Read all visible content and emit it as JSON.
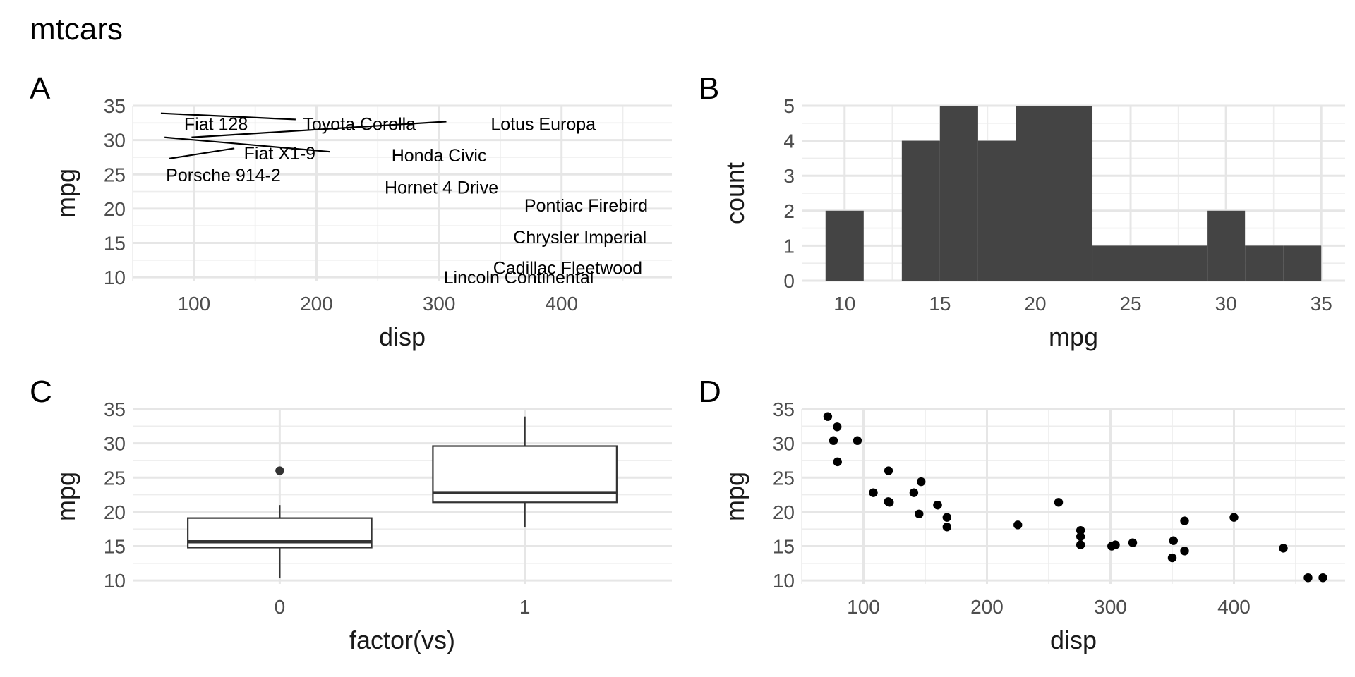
{
  "title": "mtcars",
  "chart_data": [
    {
      "tag": "A",
      "type": "scatter",
      "subtype": "text-labels",
      "xlabel": "disp",
      "ylabel": "mpg",
      "xlim": [
        50,
        490
      ],
      "ylim": [
        9.5,
        35
      ],
      "xticks": [
        100,
        200,
        300,
        400
      ],
      "yticks": [
        10,
        15,
        20,
        25,
        30,
        35
      ],
      "points": [
        {
          "label": "Fiat 128",
          "x": 78.7,
          "y": 32.4,
          "lx": 118,
          "ly": 32.4
        },
        {
          "label": "Toyota Corolla",
          "x": 71.1,
          "y": 33.9,
          "lx": 235,
          "ly": 32.4
        },
        {
          "label": "Lotus Europa",
          "x": 95.1,
          "y": 30.4,
          "lx": 385,
          "ly": 32.4
        },
        {
          "label": "Honda Civic",
          "x": 75.7,
          "y": 30.4,
          "lx": 300,
          "ly": 27.8
        },
        {
          "label": "Fiat X1-9",
          "x": 79.0,
          "y": 27.3,
          "lx": 170,
          "ly": 28.1
        },
        {
          "label": "Porsche 914-2",
          "x": 120.3,
          "y": 26.0,
          "lx": 124,
          "ly": 24.9
        },
        {
          "label": "Hornet 4 Drive",
          "x": 258.0,
          "y": 21.4,
          "lx": 302,
          "ly": 23.1
        },
        {
          "label": "Pontiac Firebird",
          "x": 400.0,
          "y": 19.2,
          "lx": 420,
          "ly": 20.5
        },
        {
          "label": "Chrysler Imperial",
          "x": 440.0,
          "y": 14.7,
          "lx": 415,
          "ly": 15.9
        },
        {
          "label": "Cadillac Fleetwood",
          "x": 472.0,
          "y": 10.4,
          "lx": 405,
          "ly": 11.4
        },
        {
          "label": "Lincoln Continental",
          "x": 460.0,
          "y": 10.4,
          "lx": 365,
          "ly": 10.0
        }
      ],
      "connectors": [
        {
          "from": [
            73,
            33.9
          ],
          "to": [
            183,
            33.0
          ]
        },
        {
          "from": [
            98,
            30.4
          ],
          "to": [
            306,
            32.7
          ]
        },
        {
          "from": [
            76,
            30.4
          ],
          "to": [
            211,
            28.3
          ]
        },
        {
          "from": [
            80,
            27.3
          ],
          "to": [
            133,
            28.8
          ]
        }
      ]
    },
    {
      "tag": "B",
      "type": "bar",
      "subtype": "histogram",
      "xlabel": "mpg",
      "ylabel": "count",
      "xlim": [
        7.75,
        36.25
      ],
      "ylim": [
        0,
        5
      ],
      "xticks": [
        10,
        15,
        20,
        25,
        30,
        35
      ],
      "yticks": [
        0,
        1,
        2,
        3,
        4,
        5
      ],
      "bin_edges": [
        9,
        11,
        13,
        15,
        17,
        19,
        21,
        23,
        25,
        27,
        29,
        31,
        33,
        35
      ],
      "counts": [
        2,
        0,
        4,
        5,
        4,
        5,
        5,
        1,
        1,
        1,
        2,
        1,
        1
      ],
      "color": "#444444"
    },
    {
      "tag": "C",
      "type": "box",
      "xlabel": "factor(vs)",
      "ylabel": "mpg",
      "ylim": [
        9.5,
        35
      ],
      "yticks": [
        10,
        15,
        20,
        25,
        30,
        35
      ],
      "categories": [
        "0",
        "1"
      ],
      "boxes": [
        {
          "category": "0",
          "whisker_low": 10.4,
          "q1": 14.8,
          "median": 15.65,
          "q3": 19.1,
          "whisker_high": 21.0,
          "outliers": [
            26.0
          ]
        },
        {
          "category": "1",
          "whisker_low": 17.8,
          "q1": 21.4,
          "median": 22.8,
          "q3": 29.6,
          "whisker_high": 33.9,
          "outliers": []
        }
      ]
    },
    {
      "tag": "D",
      "type": "scatter",
      "xlabel": "disp",
      "ylabel": "mpg",
      "xlim": [
        50,
        490
      ],
      "ylim": [
        9.5,
        35
      ],
      "xticks": [
        100,
        200,
        300,
        400
      ],
      "yticks": [
        10,
        15,
        20,
        25,
        30,
        35
      ],
      "points": [
        [
          160,
          21.0
        ],
        [
          160,
          21.0
        ],
        [
          108,
          22.8
        ],
        [
          258,
          21.4
        ],
        [
          360,
          18.7
        ],
        [
          225,
          18.1
        ],
        [
          360,
          14.3
        ],
        [
          146.7,
          24.4
        ],
        [
          140.8,
          22.8
        ],
        [
          167.6,
          19.2
        ],
        [
          167.6,
          17.8
        ],
        [
          275.8,
          16.4
        ],
        [
          275.8,
          17.3
        ],
        [
          275.8,
          15.2
        ],
        [
          472,
          10.4
        ],
        [
          460,
          10.4
        ],
        [
          440,
          14.7
        ],
        [
          78.7,
          32.4
        ],
        [
          75.7,
          30.4
        ],
        [
          71.1,
          33.9
        ],
        [
          120.1,
          21.5
        ],
        [
          318,
          15.5
        ],
        [
          304,
          15.2
        ],
        [
          350,
          13.3
        ],
        [
          400,
          19.2
        ],
        [
          79,
          27.3
        ],
        [
          120.3,
          26.0
        ],
        [
          95.1,
          30.4
        ],
        [
          351,
          15.8
        ],
        [
          145,
          19.7
        ],
        [
          301,
          15.0
        ],
        [
          121,
          21.4
        ]
      ]
    }
  ]
}
